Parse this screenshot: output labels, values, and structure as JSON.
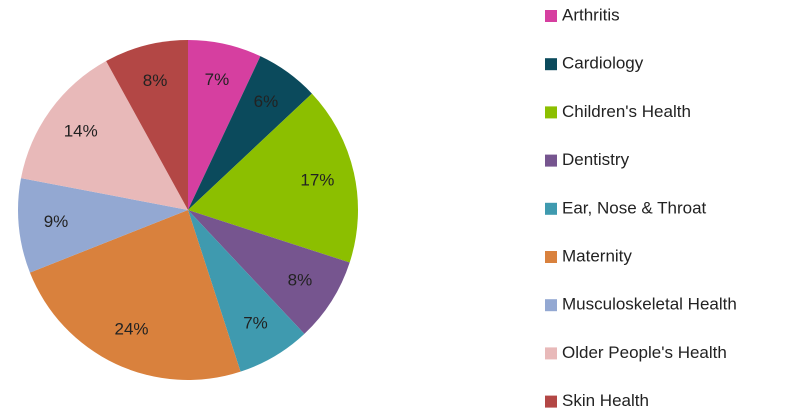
{
  "chart_data": {
    "type": "pie",
    "categories": [
      "Arthritis",
      "Cardiology",
      "Children's Health",
      "Dentistry",
      "Ear, Nose & Throat",
      "Maternity",
      "Musculoskeletal Health",
      "Older People's Health",
      "Skin Health"
    ],
    "values": [
      7,
      6,
      17,
      8,
      7,
      24,
      9,
      14,
      8
    ],
    "value_labels": [
      "7%",
      "6%",
      "17%",
      "8%",
      "7%",
      "24%",
      "9%",
      "14%",
      "8%"
    ],
    "colors": [
      "#d63fa0",
      "#0b4a5c",
      "#8cbf00",
      "#76558f",
      "#3f9aaf",
      "#d9813d",
      "#93a8d2",
      "#e8b9b9",
      "#b34745"
    ],
    "legend": "right"
  }
}
